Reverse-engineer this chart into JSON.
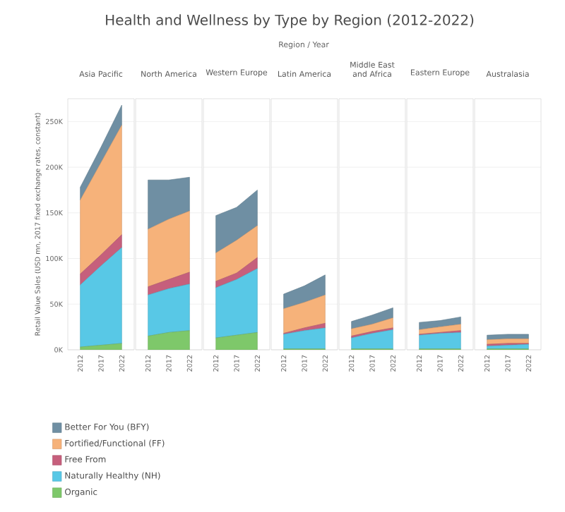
{
  "chart_data": [
    {
      "type": "other",
      "title": "Health and Wellness by Type by Region (2012-2022)",
      "subtitle": "Region / Year"
    },
    {
      "type": "area",
      "title": "Asia Pacific",
      "stacked": true,
      "ylabel": "Retail Value Sales (USD mn, 2017 fixed exchange rates, constant)",
      "categories": [
        "2012",
        "2017",
        "2022"
      ],
      "ylim": [
        0,
        275000
      ],
      "yticks": [
        {
          "value": 0,
          "label": "0K"
        },
        {
          "value": 50000,
          "label": "50K"
        },
        {
          "value": 100000,
          "label": "100K"
        },
        {
          "value": 150000,
          "label": "150K"
        },
        {
          "value": 200000,
          "label": "200K"
        },
        {
          "value": 250000,
          "label": "250K"
        }
      ],
      "grid": "y",
      "legend": "bottom",
      "series": [
        {
          "name": "Organic",
          "color": "#7ec86a",
          "values": [
            3000,
            5000,
            7000
          ]
        },
        {
          "name": "Naturally Healthy (NH)",
          "color": "#58c8e6",
          "values": [
            68000,
            87000,
            105000
          ]
        },
        {
          "name": "Free From",
          "color": "#c65f7c",
          "values": [
            12000,
            12000,
            14000
          ]
        },
        {
          "name": "Fortified/Functional (FF)",
          "color": "#f6b27a",
          "values": [
            81000,
            101000,
            120000
          ]
        },
        {
          "name": "Better For You (BFY)",
          "color": "#6f8fa3",
          "values": [
            14000,
            17000,
            22000
          ]
        }
      ]
    },
    {
      "type": "area",
      "title": "North America",
      "stacked": true,
      "categories": [
        "2012",
        "2017",
        "2022"
      ],
      "ylim": [
        0,
        275000
      ],
      "yticks": [
        {
          "value": 0,
          "label": "0K"
        },
        {
          "value": 50000,
          "label": "50K"
        },
        {
          "value": 100000,
          "label": "100K"
        },
        {
          "value": 150000,
          "label": "150K"
        },
        {
          "value": 200000,
          "label": "200K"
        },
        {
          "value": 250000,
          "label": "250K"
        }
      ],
      "grid": "y",
      "tick_labels": "x",
      "series": [
        {
          "color": "#7ec86a",
          "values": [
            15000,
            19000,
            21000
          ]
        },
        {
          "color": "#58c8e6",
          "values": [
            45000,
            48000,
            51000
          ]
        },
        {
          "color": "#c65f7c",
          "values": [
            9000,
            10000,
            13000
          ]
        },
        {
          "color": "#f6b27a",
          "values": [
            63000,
            66000,
            67000
          ]
        },
        {
          "color": "#6f8fa3",
          "values": [
            54000,
            43000,
            37000
          ]
        }
      ]
    },
    {
      "type": "area",
      "title": "Western Europe",
      "stacked": true,
      "categories": [
        "2012",
        "2017",
        "2022"
      ],
      "ylim": [
        0,
        275000
      ],
      "yticks": [
        {
          "value": 0,
          "label": "0K"
        },
        {
          "value": 50000,
          "label": "50K"
        },
        {
          "value": 100000,
          "label": "100K"
        },
        {
          "value": 150000,
          "label": "150K"
        },
        {
          "value": 200000,
          "label": "200K"
        },
        {
          "value": 250000,
          "label": "250K"
        }
      ],
      "grid": "y",
      "tick_labels": "x",
      "series": [
        {
          "color": "#7ec86a",
          "values": [
            13000,
            16000,
            19000
          ]
        },
        {
          "color": "#58c8e6",
          "values": [
            55000,
            61000,
            70000
          ]
        },
        {
          "color": "#c65f7c",
          "values": [
            7000,
            7000,
            12000
          ]
        },
        {
          "color": "#f6b27a",
          "values": [
            31000,
            36000,
            35000
          ]
        },
        {
          "color": "#6f8fa3",
          "values": [
            41000,
            36000,
            39000
          ]
        }
      ]
    },
    {
      "type": "area",
      "title": "Latin America",
      "stacked": true,
      "categories": [
        "2012",
        "2017",
        "2022"
      ],
      "ylim": [
        0,
        275000
      ],
      "yticks": [
        {
          "value": 0,
          "label": "0K"
        },
        {
          "value": 50000,
          "label": "50K"
        },
        {
          "value": 100000,
          "label": "100K"
        },
        {
          "value": 150000,
          "label": "150K"
        },
        {
          "value": 200000,
          "label": "200K"
        },
        {
          "value": 250000,
          "label": "250K"
        }
      ],
      "grid": "y",
      "tick_labels": "x",
      "series": [
        {
          "color": "#7ec86a",
          "values": [
            1000,
            1000,
            1000
          ]
        },
        {
          "color": "#58c8e6",
          "values": [
            16000,
            20000,
            23000
          ]
        },
        {
          "color": "#c65f7c",
          "values": [
            1000,
            3000,
            5000
          ]
        },
        {
          "color": "#f6b27a",
          "values": [
            27000,
            28000,
            31000
          ]
        },
        {
          "color": "#6f8fa3",
          "values": [
            16000,
            18000,
            22000
          ]
        }
      ]
    },
    {
      "type": "area",
      "title": "Middle East and Africa",
      "stacked": true,
      "categories": [
        "2012",
        "2017",
        "2022"
      ],
      "ylim": [
        0,
        275000
      ],
      "yticks": [
        {
          "value": 0,
          "label": "0K"
        },
        {
          "value": 50000,
          "label": "50K"
        },
        {
          "value": 100000,
          "label": "100K"
        },
        {
          "value": 150000,
          "label": "150K"
        },
        {
          "value": 200000,
          "label": "200K"
        },
        {
          "value": 250000,
          "label": "250K"
        }
      ],
      "grid": "y",
      "tick_labels": "x",
      "series": [
        {
          "color": "#7ec86a",
          "values": [
            1000,
            1000,
            1000
          ]
        },
        {
          "color": "#58c8e6",
          "values": [
            12000,
            17000,
            21000
          ]
        },
        {
          "color": "#c65f7c",
          "values": [
            2000,
            2000,
            2000
          ]
        },
        {
          "color": "#f6b27a",
          "values": [
            8000,
            8000,
            11000
          ]
        },
        {
          "color": "#6f8fa3",
          "values": [
            8000,
            10000,
            11000
          ]
        }
      ]
    },
    {
      "type": "area",
      "title": "Eastern Europe",
      "stacked": true,
      "categories": [
        "2012",
        "2017",
        "2022"
      ],
      "ylim": [
        0,
        275000
      ],
      "yticks": [
        {
          "value": 0,
          "label": "0K"
        },
        {
          "value": 50000,
          "label": "50K"
        },
        {
          "value": 100000,
          "label": "100K"
        },
        {
          "value": 150000,
          "label": "150K"
        },
        {
          "value": 200000,
          "label": "200K"
        },
        {
          "value": 250000,
          "label": "250K"
        }
      ],
      "grid": "y",
      "tick_labels": "x",
      "series": [
        {
          "color": "#7ec86a",
          "values": [
            1000,
            1000,
            1000
          ]
        },
        {
          "color": "#58c8e6",
          "values": [
            15000,
            17000,
            18000
          ]
        },
        {
          "color": "#c65f7c",
          "values": [
            1000,
            1000,
            2000
          ]
        },
        {
          "color": "#f6b27a",
          "values": [
            5000,
            6000,
            7000
          ]
        },
        {
          "color": "#6f8fa3",
          "values": [
            8000,
            7000,
            8000
          ]
        }
      ]
    },
    {
      "type": "area",
      "title": "Australasia",
      "stacked": true,
      "categories": [
        "2012",
        "2017",
        "2022"
      ],
      "ylim": [
        0,
        275000
      ],
      "yticks": [
        {
          "value": 0,
          "label": "0K"
        },
        {
          "value": 50000,
          "label": "50K"
        },
        {
          "value": 100000,
          "label": "100K"
        },
        {
          "value": 150000,
          "label": "150K"
        },
        {
          "value": 200000,
          "label": "200K"
        },
        {
          "value": 250000,
          "label": "250K"
        }
      ],
      "grid": "y",
      "tick_labels": "x",
      "series": [
        {
          "color": "#7ec86a",
          "values": [
            1000,
            1000,
            1000
          ]
        },
        {
          "color": "#58c8e6",
          "values": [
            3000,
            4000,
            5000
          ]
        },
        {
          "color": "#c65f7c",
          "values": [
            2000,
            2000,
            1000
          ]
        },
        {
          "color": "#f6b27a",
          "values": [
            5000,
            5000,
            5000
          ]
        },
        {
          "color": "#6f8fa3",
          "values": [
            5000,
            5000,
            5000
          ]
        }
      ]
    }
  ]
}
